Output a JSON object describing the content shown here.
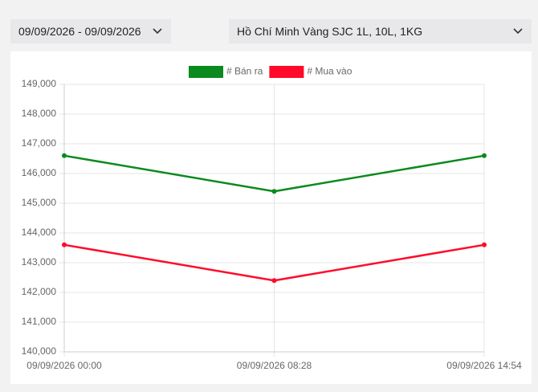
{
  "controls": {
    "date_range": "09/09/2026 - 09/09/2026",
    "product": "Hồ Chí Minh Vàng SJC 1L, 10L, 1KG"
  },
  "chart_data": {
    "type": "line",
    "categories": [
      "09/09/2026 00:00",
      "09/09/2026 08:28",
      "09/09/2026 14:54"
    ],
    "series": [
      {
        "name": "# Bán ra",
        "color": "#0b8a1f",
        "values": [
          146600,
          145400,
          146600
        ]
      },
      {
        "name": "# Mua vào",
        "color": "#ff0a2a",
        "values": [
          143600,
          142400,
          143600
        ]
      }
    ],
    "ylim": [
      140000,
      149000
    ],
    "yticks": [
      {
        "value": 140000,
        "label": "140,000"
      },
      {
        "value": 141000,
        "label": "141,000"
      },
      {
        "value": 142000,
        "label": "142,000"
      },
      {
        "value": 143000,
        "label": "143,000"
      },
      {
        "value": 144000,
        "label": "144,000"
      },
      {
        "value": 145000,
        "label": "145,000"
      },
      {
        "value": 146000,
        "label": "146,000"
      },
      {
        "value": 147000,
        "label": "147,000"
      },
      {
        "value": 148000,
        "label": "148,000"
      },
      {
        "value": 149000,
        "label": "149,000"
      }
    ],
    "grid": true,
    "legend": "top"
  }
}
